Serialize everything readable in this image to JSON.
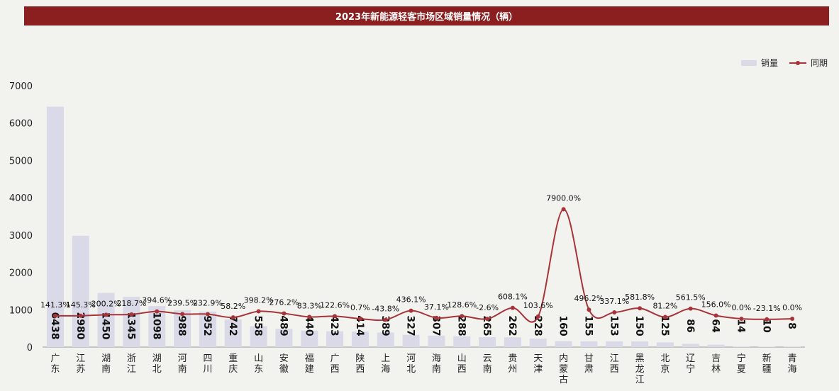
{
  "title": "2023年新能源轻客市场区域销量情况（辆）",
  "legend": {
    "bar_label": "销量",
    "line_label": "同期"
  },
  "colors": {
    "title_bg": "#8b1e1e",
    "bar": "#d9d9e8",
    "line": "#a8343a",
    "background": "#f2f2ee"
  },
  "chart_data": {
    "type": "bar",
    "title": "2023年新能源轻客市场区域销量情况（辆）",
    "xlabel": "",
    "ylabel": "",
    "ylim": [
      0,
      7000
    ],
    "yticks": [
      0,
      1000,
      2000,
      3000,
      4000,
      5000,
      6000,
      7000
    ],
    "grid": false,
    "legend_position": "top-right",
    "categories": [
      "广东",
      "江苏",
      "湖南",
      "浙江",
      "湖北",
      "河南",
      "四川",
      "重庆",
      "山东",
      "安徽",
      "福建",
      "广西",
      "陕西",
      "上海",
      "河北",
      "海南",
      "山西",
      "云南",
      "贵州",
      "天津",
      "内蒙古",
      "甘肃",
      "江西",
      "黑龙江",
      "北京",
      "辽宁",
      "吉林",
      "宁夏",
      "新疆",
      "青海"
    ],
    "series": [
      {
        "name": "销量",
        "type": "bar",
        "values": [
          6438,
          2980,
          1450,
          1345,
          1098,
          988,
          952,
          742,
          558,
          489,
          440,
          423,
          414,
          389,
          327,
          307,
          288,
          265,
          262,
          228,
          160,
          155,
          153,
          150,
          125,
          86,
          64,
          14,
          10,
          8
        ]
      },
      {
        "name": "同期",
        "type": "line",
        "values": [
          141.3,
          145.3,
          200.2,
          218.7,
          394.6,
          239.5,
          232.9,
          58.2,
          398.2,
          276.2,
          83.3,
          122.6,
          0.7,
          -43.8,
          436.1,
          37.1,
          128.6,
          -2.6,
          608.1,
          103.6,
          7900.0,
          496.2,
          337.1,
          581.8,
          81.2,
          561.5,
          156.0,
          0.0,
          -23.1,
          0.0
        ],
        "labels": [
          "141.3%",
          "145.3%",
          "200.2%",
          "218.7%",
          "394.6%",
          "239.5%",
          "232.9%",
          "58.2%",
          "398.2%",
          "276.2%",
          "83.3%",
          "122.6%",
          "0.7%",
          "-43.8%",
          "436.1%",
          "37.1%",
          "128.6%",
          "-2.6%",
          "608.1%",
          "103.6%",
          "7900.0%",
          "496.2%",
          "337.1%",
          "581.8%",
          "81.2%",
          "561.5%",
          "156.0%",
          "0.0%",
          "-23.1%",
          "0.0%"
        ]
      }
    ]
  }
}
